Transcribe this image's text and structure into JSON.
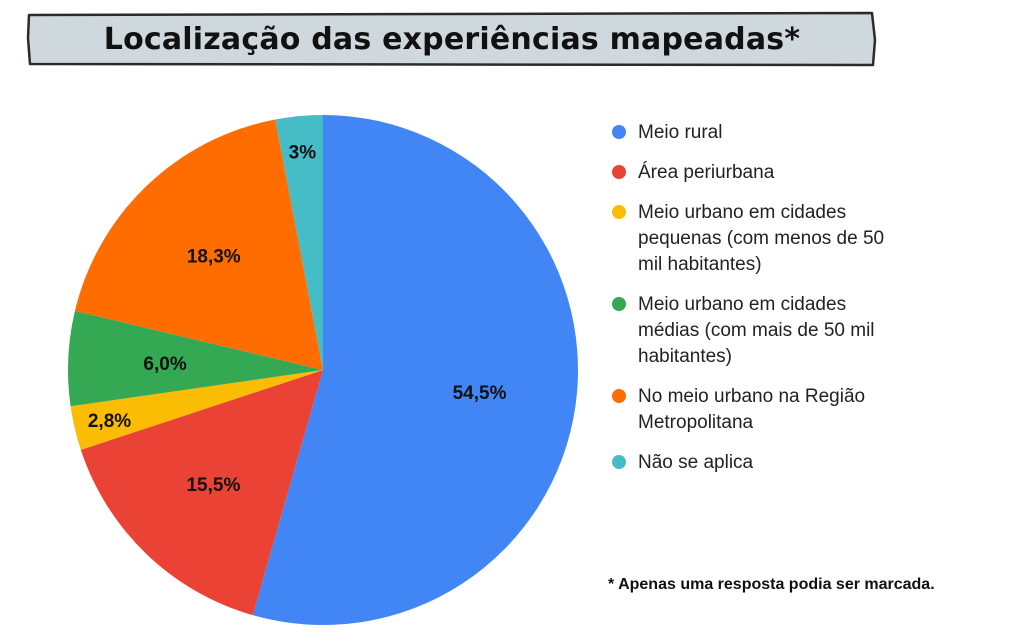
{
  "title": "Localização das experiências mapeadas*",
  "footnote": "* Apenas uma resposta podia ser marcada.",
  "colors": {
    "banner_fill": "#cfd8dc",
    "banner_stroke": "#2b2b2b"
  },
  "chart_data": {
    "type": "pie",
    "title": "Localização das experiências mapeadas*",
    "legend_position": "right",
    "slices": [
      {
        "label": "Meio rural",
        "value": 54.5,
        "display": "54,5%",
        "color": "#4285f4"
      },
      {
        "label": "Área periurbana",
        "value": 15.5,
        "display": "15,5%",
        "color": "#ea4335"
      },
      {
        "label": "Meio urbano em cidades pequenas (com menos de 50 mil habitantes)",
        "value": 2.8,
        "display": "2,8%",
        "color": "#fbbc04"
      },
      {
        "label": "Meio urbano em cidades médias (com mais de 50 mil habitantes)",
        "value": 6.0,
        "display": "6,0%",
        "color": "#34a853"
      },
      {
        "label": "No meio urbano na Região Metropolitana",
        "value": 18.3,
        "display": "18,3%",
        "color": "#ff6d01"
      },
      {
        "label": "Não se aplica",
        "value": 3.0,
        "display": "3%",
        "color": "#46bdc6"
      }
    ]
  }
}
